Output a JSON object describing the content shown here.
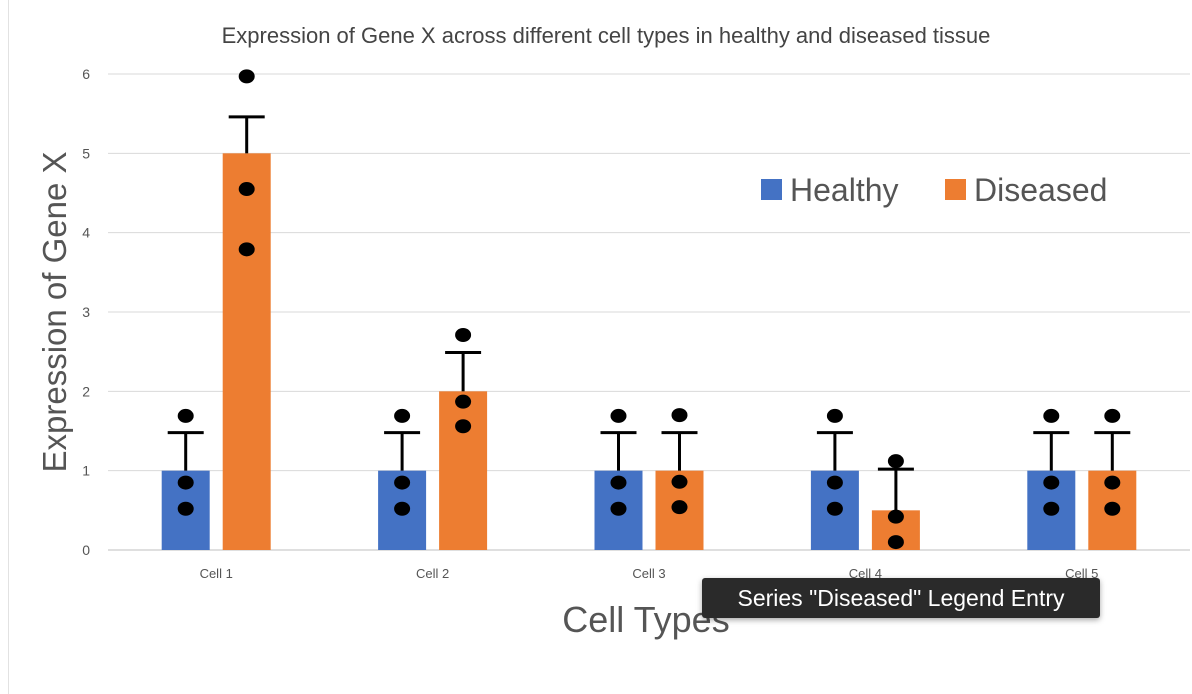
{
  "chart_data": {
    "type": "bar",
    "title": "Expression of Gene X across different cell types in healthy and diseased tissue",
    "xlabel": "Cell Types",
    "ylabel": "Expression of Gene X",
    "ylim": [
      0,
      6
    ],
    "yticks": [
      "0",
      "1",
      "2",
      "3",
      "4",
      "5",
      "6"
    ],
    "categories": [
      "Cell 1",
      "Cell 2",
      "Cell 3",
      "Cell 4",
      "Cell 5"
    ],
    "grid": true,
    "legend_position": "top-right",
    "series": [
      {
        "name": "Healthy",
        "color": "#4472C4",
        "values": [
          1,
          1,
          1,
          1,
          1
        ],
        "error_upper": [
          0.48,
          0.48,
          0.48,
          0.48,
          0.48
        ],
        "points": [
          [
            1.69,
            0.85,
            0.52
          ],
          [
            1.69,
            0.85,
            0.52
          ],
          [
            1.69,
            0.85,
            0.52
          ],
          [
            1.69,
            0.85,
            0.52
          ],
          [
            1.69,
            0.85,
            0.52
          ]
        ]
      },
      {
        "name": "Diseased",
        "color": "#ED7D31",
        "values": [
          5,
          2,
          1,
          0.5,
          1
        ],
        "error_upper": [
          0.46,
          0.49,
          0.48,
          0.52,
          0.48
        ],
        "points": [
          [
            5.97,
            4.55,
            3.79
          ],
          [
            2.71,
            1.87,
            1.56
          ],
          [
            1.7,
            0.86,
            0.54
          ],
          [
            1.12,
            0.42,
            0.1
          ],
          [
            1.69,
            0.85,
            0.52
          ]
        ]
      }
    ]
  },
  "tooltip": {
    "text": "Series \"Diseased\" Legend Entry"
  }
}
